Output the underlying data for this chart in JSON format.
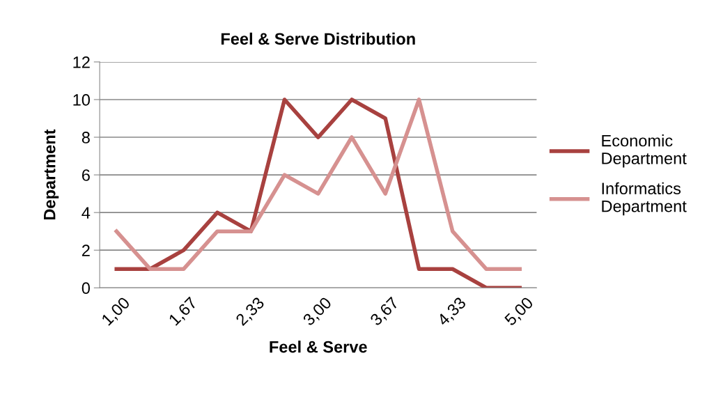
{
  "chart_data": {
    "type": "line",
    "title": "Feel & Serve Distribution",
    "xlabel": "Feel & Serve",
    "ylabel": "Department",
    "categories": [
      "1,00",
      null,
      "1,67",
      null,
      "2,33",
      null,
      "3,00",
      null,
      "3,67",
      null,
      "4,33",
      null,
      "5,00"
    ],
    "series": [
      {
        "name": "Economic Department",
        "color": "#a8413f",
        "values": [
          1,
          1,
          2,
          4,
          3,
          10,
          8,
          10,
          9,
          1,
          1,
          0,
          0
        ]
      },
      {
        "name": "Informatics Department",
        "color": "#d69190",
        "values": [
          3,
          1,
          1,
          3,
          3,
          6,
          5,
          8,
          5,
          10,
          3,
          1,
          1
        ]
      }
    ],
    "ylim": [
      0,
      12
    ],
    "yticks": [
      0,
      2,
      4,
      6,
      8,
      10,
      12
    ],
    "grid": "y",
    "legend": "right",
    "marker": "none",
    "line_style": "solid"
  }
}
